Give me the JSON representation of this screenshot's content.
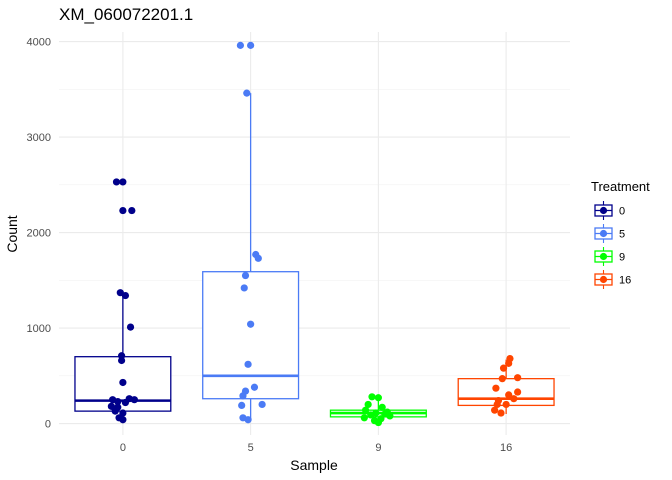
{
  "chart_data": {
    "type": "box",
    "title": "XM_060072201.1",
    "xlabel": "Sample",
    "ylabel": "Count",
    "ylim": [
      -120,
      4100
    ],
    "yticks": [
      0,
      1000,
      2000,
      3000,
      4000
    ],
    "grid": true,
    "categories": [
      "0",
      "5",
      "9",
      "16"
    ],
    "legend": {
      "title": "Treatment",
      "position": "right",
      "entries": [
        "0",
        "5",
        "9",
        "16"
      ]
    },
    "series": [
      {
        "name": "0",
        "color": "#00008B",
        "box": {
          "whisker_low": 30,
          "q1": 130,
          "median": 240,
          "q3": 700,
          "whisker_high": 1340
        },
        "points": [
          [
            -0.05,
            2530
          ],
          [
            0.0,
            2530
          ],
          [
            0.0,
            2230
          ],
          [
            0.07,
            2230
          ],
          [
            -0.02,
            1370
          ],
          [
            0.02,
            1340
          ],
          [
            0.06,
            1010
          ],
          [
            -0.01,
            710
          ],
          [
            -0.01,
            660
          ],
          [
            0.0,
            430
          ],
          [
            -0.08,
            250
          ],
          [
            -0.04,
            230
          ],
          [
            0.05,
            260
          ],
          [
            0.09,
            250
          ],
          [
            -0.09,
            180
          ],
          [
            -0.04,
            170
          ],
          [
            0.02,
            220
          ],
          [
            -0.06,
            130
          ],
          [
            0.0,
            110
          ],
          [
            -0.03,
            60
          ],
          [
            0.0,
            40
          ]
        ]
      },
      {
        "name": "5",
        "color": "#4B7BF5",
        "box": {
          "whisker_low": 30,
          "q1": 260,
          "median": 500,
          "q3": 1590,
          "whisker_high": 3460
        },
        "points": [
          [
            -0.08,
            3960
          ],
          [
            0.0,
            3960
          ],
          [
            -0.03,
            3460
          ],
          [
            0.04,
            1770
          ],
          [
            0.06,
            1730
          ],
          [
            -0.04,
            1550
          ],
          [
            -0.05,
            1420
          ],
          [
            0.0,
            1040
          ],
          [
            -0.02,
            620
          ],
          [
            0.03,
            380
          ],
          [
            -0.04,
            340
          ],
          [
            -0.06,
            290
          ],
          [
            0.09,
            200
          ],
          [
            -0.07,
            190
          ],
          [
            -0.06,
            60
          ],
          [
            -0.02,
            40
          ]
        ]
      },
      {
        "name": "9",
        "color": "#00FF00",
        "box": {
          "whisker_low": 0,
          "q1": 70,
          "median": 110,
          "q3": 140,
          "whisker_high": 270
        },
        "points": [
          [
            -0.05,
            280
          ],
          [
            0.0,
            270
          ],
          [
            -0.08,
            200
          ],
          [
            0.03,
            170
          ],
          [
            -0.1,
            140
          ],
          [
            0.07,
            120
          ],
          [
            -0.02,
            110
          ],
          [
            0.05,
            100
          ],
          [
            -0.06,
            90
          ],
          [
            0.09,
            80
          ],
          [
            -0.11,
            60
          ],
          [
            0.02,
            50
          ],
          [
            -0.03,
            30
          ],
          [
            0.0,
            10
          ]
        ]
      },
      {
        "name": "16",
        "color": "#FF4500",
        "box": {
          "whisker_low": 100,
          "q1": 190,
          "median": 260,
          "q3": 470,
          "whisker_high": 670
        },
        "points": [
          [
            0.03,
            680
          ],
          [
            0.02,
            630
          ],
          [
            -0.02,
            580
          ],
          [
            0.09,
            480
          ],
          [
            -0.03,
            470
          ],
          [
            -0.08,
            370
          ],
          [
            0.09,
            330
          ],
          [
            0.02,
            300
          ],
          [
            -0.06,
            240
          ],
          [
            0.06,
            260
          ],
          [
            -0.07,
            200
          ],
          [
            0.0,
            200
          ],
          [
            -0.09,
            140
          ],
          [
            -0.04,
            110
          ]
        ]
      }
    ]
  }
}
